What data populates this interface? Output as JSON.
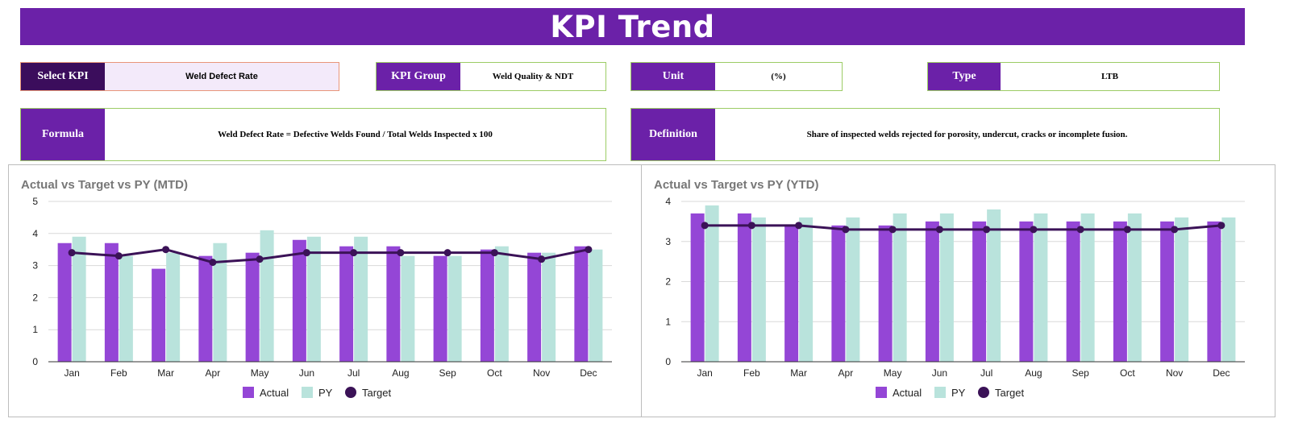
{
  "header": {
    "title": "KPI Trend"
  },
  "fields": {
    "select_kpi": {
      "label": "Select KPI",
      "value": "Weld Defect Rate"
    },
    "kpi_group": {
      "label": "KPI Group",
      "value": "Weld Quality & NDT"
    },
    "unit": {
      "label": "Unit",
      "value": "(%)"
    },
    "type": {
      "label": "Type",
      "value": "LTB"
    },
    "formula": {
      "label": "Formula",
      "value": "Weld Defect Rate = Defective Welds Found / Total Welds Inspected x 100"
    },
    "definition": {
      "label": "Definition",
      "value": "Share of inspected welds rejected for porosity, undercut, cracks or incomplete fusion."
    }
  },
  "colors": {
    "actual": "#9446d6",
    "py": "#b9e3dc",
    "target": "#3b1257",
    "header": "#6b21a8"
  },
  "chart_data": [
    {
      "type": "bar",
      "title": "Actual vs Target vs PY (MTD)",
      "categories": [
        "Jan",
        "Feb",
        "Mar",
        "Apr",
        "May",
        "Jun",
        "Jul",
        "Aug",
        "Sep",
        "Oct",
        "Nov",
        "Dec"
      ],
      "ylim": [
        0,
        5
      ],
      "yticks": [
        0,
        1,
        2,
        3,
        4,
        5
      ],
      "grid": true,
      "legend": "bottom",
      "series": [
        {
          "name": "Actual",
          "kind": "bar",
          "values": [
            3.7,
            3.7,
            2.9,
            3.3,
            3.4,
            3.8,
            3.6,
            3.6,
            3.3,
            3.5,
            3.4,
            3.6
          ]
        },
        {
          "name": "PY",
          "kind": "bar",
          "values": [
            3.9,
            3.3,
            3.4,
            3.7,
            4.1,
            3.9,
            3.9,
            3.3,
            3.3,
            3.6,
            3.4,
            3.5
          ]
        },
        {
          "name": "Target",
          "kind": "line",
          "values": [
            3.4,
            3.3,
            3.5,
            3.1,
            3.2,
            3.4,
            3.4,
            3.4,
            3.4,
            3.4,
            3.2,
            3.5
          ]
        }
      ]
    },
    {
      "type": "bar",
      "title": "Actual vs Target vs PY (YTD)",
      "categories": [
        "Jan",
        "Feb",
        "Mar",
        "Apr",
        "May",
        "Jun",
        "Jul",
        "Aug",
        "Sep",
        "Oct",
        "Nov",
        "Dec"
      ],
      "ylim": [
        0,
        4
      ],
      "yticks": [
        0,
        1,
        2,
        3,
        4
      ],
      "grid": true,
      "legend": "bottom",
      "series": [
        {
          "name": "Actual",
          "kind": "bar",
          "values": [
            3.7,
            3.7,
            3.4,
            3.4,
            3.4,
            3.5,
            3.5,
            3.5,
            3.5,
            3.5,
            3.5,
            3.5
          ]
        },
        {
          "name": "PY",
          "kind": "bar",
          "values": [
            3.9,
            3.6,
            3.6,
            3.6,
            3.7,
            3.7,
            3.8,
            3.7,
            3.7,
            3.7,
            3.6,
            3.6
          ]
        },
        {
          "name": "Target",
          "kind": "line",
          "values": [
            3.4,
            3.4,
            3.4,
            3.3,
            3.3,
            3.3,
            3.3,
            3.3,
            3.3,
            3.3,
            3.3,
            3.4
          ]
        }
      ]
    }
  ]
}
